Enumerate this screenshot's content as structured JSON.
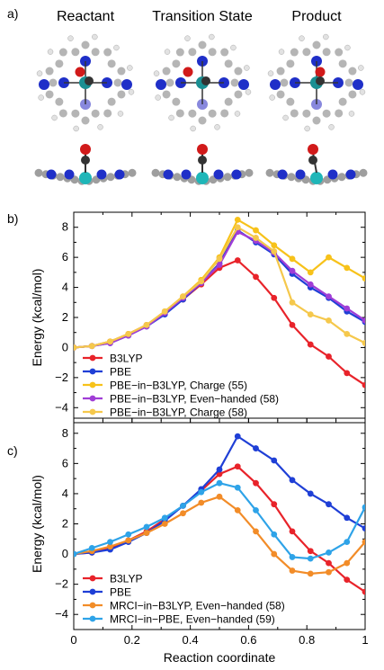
{
  "panel_a": {
    "label": "a)",
    "titles": [
      "Reactant",
      "Transition State",
      "Product"
    ]
  },
  "colors": {
    "red": "#e8232a",
    "blue": "#1f3fd6",
    "yellow": "#f7c21a",
    "purple": "#a03dd6",
    "lightorange": "#f5c84c",
    "orange": "#f28c28",
    "lightblue": "#2ea3e8"
  },
  "chart_data": [
    {
      "panel_label": "b)",
      "type": "line",
      "xlabel": "",
      "ylabel": "Energy (kcal/mol)",
      "xlim": [
        0,
        1
      ],
      "ylim": [
        -5,
        9
      ],
      "yticks": [
        "8",
        "6",
        "4",
        "2",
        "0",
        "−2",
        "−4"
      ],
      "legend_position": "bottom-left",
      "series": [
        {
          "name": "B3LYP",
          "color": "#e8232a",
          "x": [
            0,
            0.0625,
            0.125,
            0.1875,
            0.25,
            0.3125,
            0.375,
            0.4375,
            0.5,
            0.5625,
            0.625,
            0.6875,
            0.75,
            0.8125,
            0.875,
            0.9375,
            1
          ],
          "y": [
            0,
            0.1,
            0.4,
            0.9,
            1.5,
            2.3,
            3.2,
            4.2,
            5.3,
            5.8,
            4.7,
            3.3,
            1.5,
            0.2,
            -0.6,
            -1.7,
            -2.5
          ]
        },
        {
          "name": "PBE",
          "color": "#1f3fd6",
          "x": [
            0,
            0.0625,
            0.125,
            0.1875,
            0.25,
            0.3125,
            0.375,
            0.4375,
            0.5,
            0.5625,
            0.625,
            0.6875,
            0.75,
            0.8125,
            0.875,
            0.9375,
            1
          ],
          "y": [
            0,
            0.1,
            0.3,
            0.8,
            1.4,
            2.2,
            3.2,
            4.3,
            5.6,
            7.8,
            7.0,
            6.2,
            4.9,
            4.0,
            3.3,
            2.4,
            1.7
          ]
        },
        {
          "name": "PBE−in−B3LYP, Charge (55)",
          "color": "#f7c21a",
          "x": [
            0,
            0.0625,
            0.125,
            0.1875,
            0.25,
            0.3125,
            0.375,
            0.4375,
            0.5,
            0.5625,
            0.625,
            0.6875,
            0.75,
            0.8125,
            0.875,
            0.9375,
            1
          ],
          "y": [
            0,
            0.1,
            0.4,
            0.9,
            1.5,
            2.4,
            3.4,
            4.5,
            6.0,
            8.5,
            7.8,
            6.8,
            5.9,
            5.0,
            6.0,
            5.3,
            4.6
          ]
        },
        {
          "name": "PBE−in−B3LYP, Even−handed (58)",
          "color": "#a03dd6",
          "x": [
            0,
            0.0625,
            0.125,
            0.1875,
            0.25,
            0.3125,
            0.375,
            0.4375,
            0.5,
            0.5625,
            0.625,
            0.6875,
            0.75,
            0.8125,
            0.875,
            0.9375,
            1
          ],
          "y": [
            0,
            0.1,
            0.3,
            0.8,
            1.4,
            2.3,
            3.3,
            4.3,
            5.5,
            7.7,
            7.1,
            6.3,
            5.1,
            4.2,
            3.4,
            2.6,
            1.8
          ]
        },
        {
          "name": "PBE−in−B3LYP, Charge (58)",
          "color": "#f5c84c",
          "x": [
            0,
            0.0625,
            0.125,
            0.1875,
            0.25,
            0.3125,
            0.375,
            0.4375,
            0.5,
            0.5625,
            0.625,
            0.6875,
            0.75,
            0.8125,
            0.875,
            0.9375,
            1
          ],
          "y": [
            0,
            0.1,
            0.4,
            0.9,
            1.5,
            2.4,
            3.4,
            4.4,
            5.9,
            8.0,
            7.3,
            6.4,
            3.0,
            2.2,
            1.8,
            0.9,
            0.3
          ]
        }
      ]
    },
    {
      "panel_label": "c)",
      "type": "line",
      "xlabel": "Reaction coordinate",
      "ylabel": "Energy (kcal/mol)",
      "xlim": [
        0,
        1
      ],
      "ylim": [
        -5,
        9
      ],
      "yticks": [
        "8",
        "6",
        "4",
        "2",
        "0",
        "−2",
        "−4"
      ],
      "xticks": [
        "0",
        "0.2",
        "0.4",
        "0.6",
        "0.8",
        "1"
      ],
      "legend_position": "bottom-left",
      "series": [
        {
          "name": "B3LYP",
          "color": "#e8232a",
          "x": [
            0,
            0.0625,
            0.125,
            0.1875,
            0.25,
            0.3125,
            0.375,
            0.4375,
            0.5,
            0.5625,
            0.625,
            0.6875,
            0.75,
            0.8125,
            0.875,
            0.9375,
            1
          ],
          "y": [
            0,
            0.1,
            0.4,
            0.9,
            1.5,
            2.3,
            3.2,
            4.2,
            5.3,
            5.8,
            4.7,
            3.3,
            1.5,
            0.2,
            -0.6,
            -1.7,
            -2.5
          ]
        },
        {
          "name": "PBE",
          "color": "#1f3fd6",
          "x": [
            0,
            0.0625,
            0.125,
            0.1875,
            0.25,
            0.3125,
            0.375,
            0.4375,
            0.5,
            0.5625,
            0.625,
            0.6875,
            0.75,
            0.8125,
            0.875,
            0.9375,
            1
          ],
          "y": [
            0,
            0.1,
            0.3,
            0.8,
            1.4,
            2.2,
            3.2,
            4.3,
            5.6,
            7.8,
            7.0,
            6.2,
            4.9,
            4.0,
            3.3,
            2.4,
            1.7
          ]
        },
        {
          "name": "MRCI−in−B3LYP, Even−handed (58)",
          "color": "#f28c28",
          "x": [
            0,
            0.0625,
            0.125,
            0.1875,
            0.25,
            0.3125,
            0.375,
            0.4375,
            0.5,
            0.5625,
            0.625,
            0.6875,
            0.75,
            0.8125,
            0.875,
            0.9375,
            1
          ],
          "y": [
            0,
            0.2,
            0.5,
            0.9,
            1.4,
            2.0,
            2.7,
            3.4,
            3.8,
            2.9,
            1.5,
            0.0,
            -1.1,
            -1.3,
            -1.2,
            -0.6,
            0.8
          ]
        },
        {
          "name": "MRCI−in−PBE, Even−handed (59)",
          "color": "#2ea3e8",
          "x": [
            0,
            0.0625,
            0.125,
            0.1875,
            0.25,
            0.3125,
            0.375,
            0.4375,
            0.5,
            0.5625,
            0.625,
            0.6875,
            0.75,
            0.8125,
            0.875,
            0.9375,
            1
          ],
          "y": [
            0,
            0.4,
            0.8,
            1.3,
            1.8,
            2.4,
            3.2,
            4.1,
            4.7,
            4.4,
            2.9,
            1.3,
            -0.2,
            -0.3,
            0.1,
            0.8,
            3.1
          ]
        }
      ]
    }
  ]
}
